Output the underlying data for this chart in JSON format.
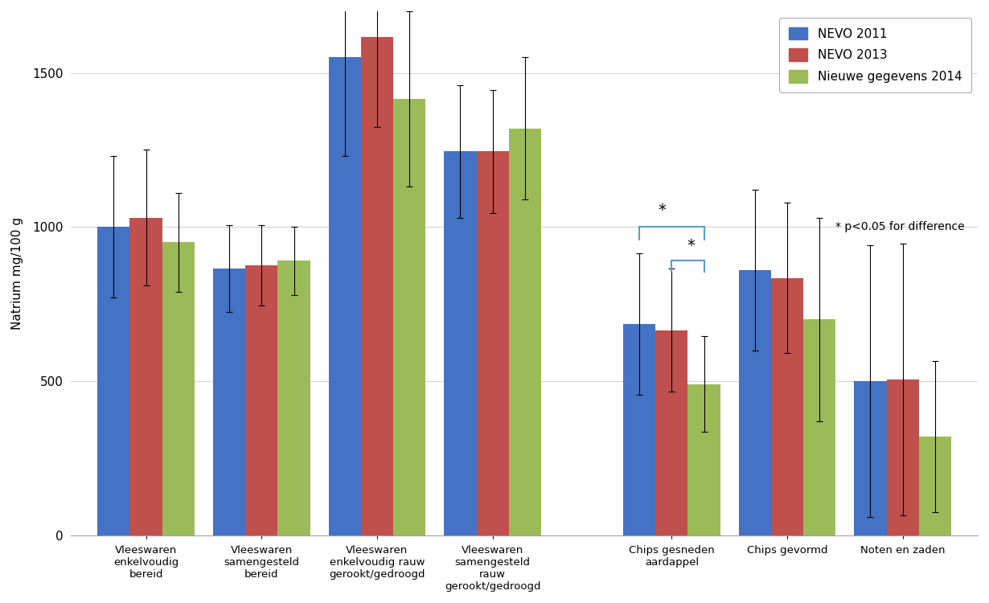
{
  "categories": [
    "Vleeswaren\nenkelvoudig\nbereid",
    "Vleeswaren\nsamengesteld\nbereid",
    "Vleeswaren\nenkelvoudig rauw\ngerookt/gedroogd",
    "Vleeswaren\nsamengesteld\nrauw\ngerookt/gedroogd",
    "Chips gesneden\naardappel",
    "Chips gevormd",
    "Noten en zaden"
  ],
  "series": {
    "NEVO 2011": {
      "values": [
        1000,
        865,
        1550,
        1245,
        685,
        860,
        500
      ],
      "errors": [
        230,
        140,
        320,
        215,
        230,
        260,
        440
      ],
      "color": "#4472C4"
    },
    "NEVO 2013": {
      "values": [
        1030,
        875,
        1615,
        1245,
        665,
        835,
        505
      ],
      "errors": [
        220,
        130,
        290,
        200,
        200,
        245,
        440
      ],
      "color": "#C0504D"
    },
    "Nieuwe gegevens 2014": {
      "values": [
        950,
        890,
        1415,
        1320,
        490,
        700,
        320
      ],
      "errors": [
        160,
        110,
        285,
        230,
        155,
        330,
        245
      ],
      "color": "#9BBB59"
    }
  },
  "ylabel": "Natrium mg/100 g",
  "ylim": [
    0,
    1700
  ],
  "yticks": [
    0,
    500,
    1000,
    1500
  ],
  "background_color": "#FFFFFF",
  "grid_color": "#D3D3D3",
  "significance_annotation": "* p<0.05 for difference",
  "bracket_color": "#5B9BD5"
}
